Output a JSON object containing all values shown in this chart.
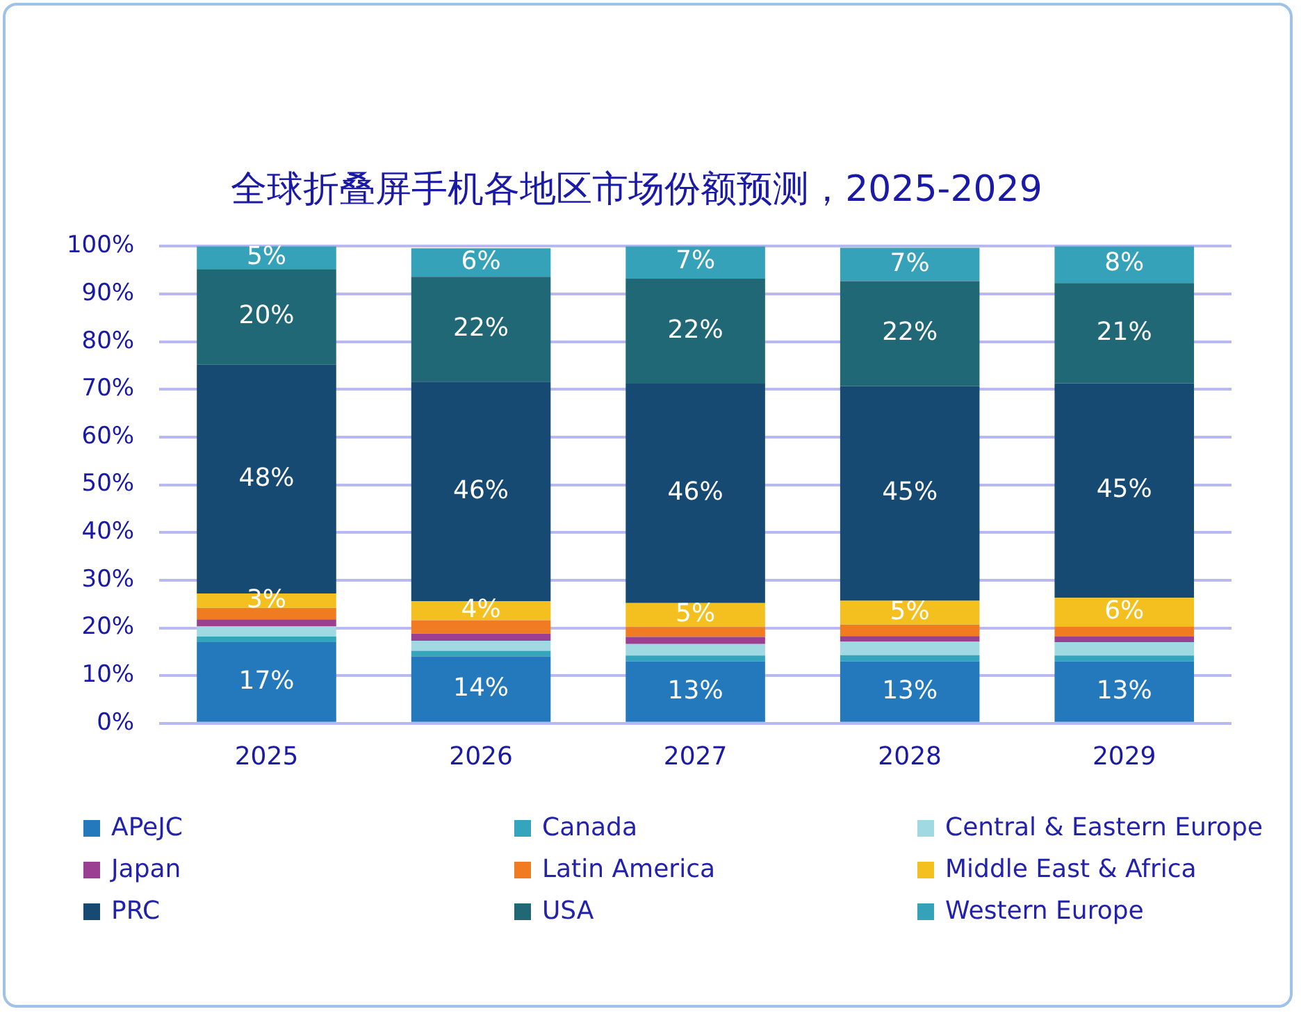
{
  "chart_data": {
    "type": "bar",
    "title": "全球折叠屏手机各地区市场份额预测，2025-2029",
    "categories": [
      "2025",
      "2026",
      "2027",
      "2028",
      "2029"
    ],
    "stacked": true,
    "ylim": [
      0,
      100
    ],
    "yticks": [
      {
        "value": 0,
        "label": "0%"
      },
      {
        "value": 10,
        "label": "10%"
      },
      {
        "value": 20,
        "label": "20%"
      },
      {
        "value": 30,
        "label": "30%"
      },
      {
        "value": 40,
        "label": "40%"
      },
      {
        "value": 50,
        "label": "50%"
      },
      {
        "value": 60,
        "label": "60%"
      },
      {
        "value": 70,
        "label": "70%"
      },
      {
        "value": 80,
        "label": "80%"
      },
      {
        "value": 90,
        "label": "90%"
      },
      {
        "value": 100,
        "label": "100%"
      }
    ],
    "grid": "y",
    "legend": "bottom",
    "series": [
      {
        "name": "APeJC",
        "color": "#2479bd",
        "values": [
          17,
          14,
          13,
          13,
          13
        ],
        "value_labels": [
          "17%",
          "14%",
          "13%",
          "13%",
          "13%"
        ]
      },
      {
        "name": "Canada",
        "color": "#35a5bd",
        "values": [
          1.2,
          1.2,
          1.2,
          1.3,
          1.2
        ]
      },
      {
        "name": "Central & Eastern Europe",
        "color": "#a1d9e3",
        "values": [
          2.1,
          2.1,
          2.4,
          2.8,
          2.8
        ]
      },
      {
        "name": "Japan",
        "color": "#9b3f93",
        "values": [
          1.5,
          1.5,
          1.5,
          1.2,
          1.2
        ]
      },
      {
        "name": "Latin America",
        "color": "#f07b21",
        "values": [
          2.4,
          2.8,
          2.1,
          2.4,
          2.1
        ]
      },
      {
        "name": "Middle East & Africa",
        "color": "#f3c01f",
        "values": [
          3,
          4,
          5,
          5,
          6
        ],
        "value_labels": [
          "3%",
          "4%",
          "5%",
          "5%",
          "6%"
        ]
      },
      {
        "name": "PRC",
        "color": "#164a72",
        "values": [
          48,
          46,
          46,
          45,
          45
        ],
        "value_labels": [
          "48%",
          "46%",
          "46%",
          "45%",
          "45%"
        ]
      },
      {
        "name": "USA",
        "color": "#216876",
        "values": [
          20,
          22,
          22,
          22,
          21
        ],
        "value_labels": [
          "20%",
          "22%",
          "22%",
          "22%",
          "21%"
        ]
      },
      {
        "name": "Western Europe",
        "color": "#36a2b9",
        "values": [
          5,
          6,
          7,
          7,
          8
        ],
        "value_labels": [
          "5%",
          "6%",
          "7%",
          "7%",
          "8%"
        ]
      }
    ]
  }
}
